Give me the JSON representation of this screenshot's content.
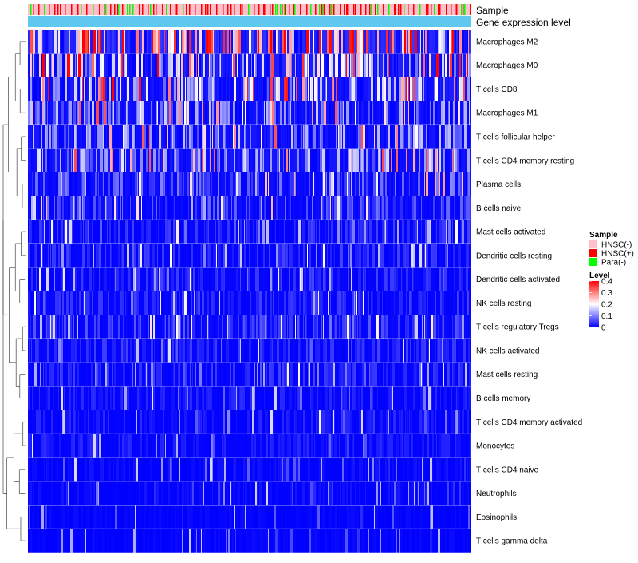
{
  "chart_data": {
    "type": "heatmap",
    "title": "",
    "annotations": [
      {
        "name": "Sample",
        "label": "Sample"
      },
      {
        "name": "Gene expression level",
        "label": "Gene expression level"
      }
    ],
    "rows": [
      {
        "label": "Macrophages M2",
        "mean": 0.24
      },
      {
        "label": "Macrophages M0",
        "mean": 0.14
      },
      {
        "label": "T cells CD8",
        "mean": 0.12
      },
      {
        "label": "Macrophages M1",
        "mean": 0.09
      },
      {
        "label": "T cells follicular helper",
        "mean": 0.09
      },
      {
        "label": "T cells CD4 memory resting",
        "mean": 0.1
      },
      {
        "label": "Plasma cells",
        "mean": 0.06
      },
      {
        "label": "B cells naive",
        "mean": 0.05
      },
      {
        "label": "Mast cells activated",
        "mean": 0.03
      },
      {
        "label": "Dendritic cells resting",
        "mean": 0.03
      },
      {
        "label": "Dendritic cells activated",
        "mean": 0.03
      },
      {
        "label": "NK cells resting",
        "mean": 0.03
      },
      {
        "label": "T cells regulatory  Tregs",
        "mean": 0.04
      },
      {
        "label": "NK cells activated",
        "mean": 0.03
      },
      {
        "label": "Mast cells resting",
        "mean": 0.03
      },
      {
        "label": "B cells memory",
        "mean": 0.02
      },
      {
        "label": "T cells CD4 memory activated",
        "mean": 0.02
      },
      {
        "label": "Monocytes",
        "mean": 0.02
      },
      {
        "label": "T cells CD4 naive",
        "mean": 0.01
      },
      {
        "label": "Neutrophils",
        "mean": 0.01
      },
      {
        "label": "Eosinophils",
        "mean": 0.005
      },
      {
        "label": "T cells gamma delta",
        "mean": 0.005
      }
    ],
    "legend_sample": {
      "title": "Sample",
      "entries": [
        {
          "label": "HNSC(-)",
          "color": "#ffc0cb"
        },
        {
          "label": "HNSC(+)",
          "color": "#ff0000"
        },
        {
          "label": "Para(-)",
          "color": "#00ff00"
        }
      ]
    },
    "legend_level": {
      "title": "Level",
      "range": [
        0,
        0.4
      ],
      "ticks": [
        "0.4",
        "0.3",
        "0.2",
        "0.1",
        "0"
      ],
      "tick_values": [
        0.4,
        0.3,
        0.2,
        0.1,
        0
      ],
      "colors": [
        "#0000ff",
        "#ffffff",
        "#ff0000"
      ]
    },
    "legend_position": "right"
  }
}
